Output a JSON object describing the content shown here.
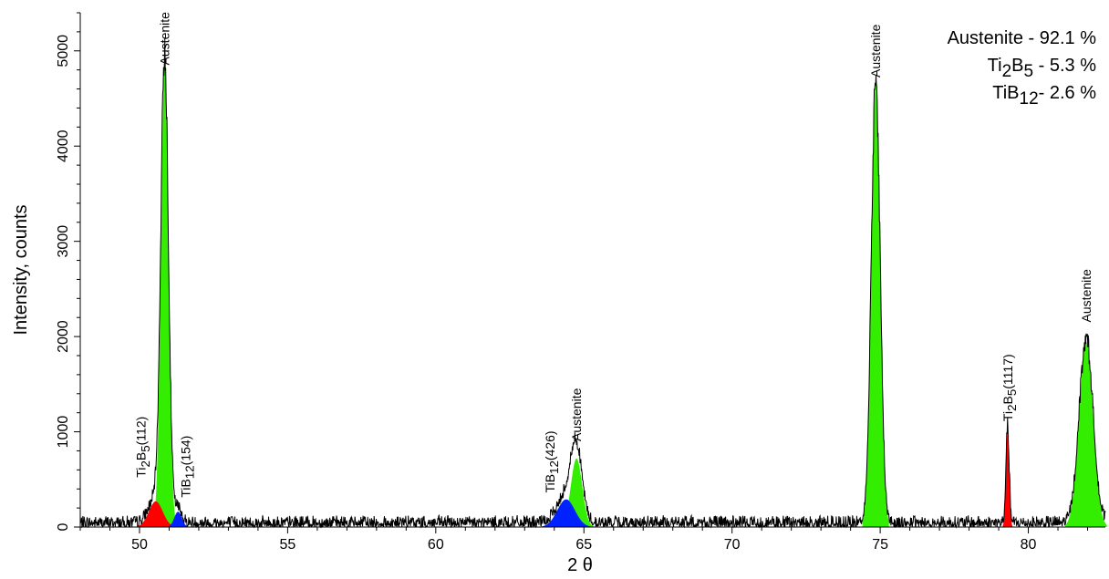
{
  "chart_data": {
    "type": "line",
    "xlabel": "2 θ",
    "ylabel": "Intensity, counts",
    "xlim": [
      48,
      82.6
    ],
    "ylim": [
      0,
      5400
    ],
    "x_ticks": [
      50,
      55,
      60,
      65,
      70,
      75,
      80
    ],
    "y_ticks": [
      0,
      1000,
      2000,
      3000,
      4000,
      5000
    ],
    "grid": false,
    "background_noise_counts": 120,
    "colors": {
      "pattern_line": "#000000",
      "austenite": "#33ee00",
      "ti2b5": "#ff0000",
      "tib12": "#0022ff"
    },
    "phases": [
      {
        "key": "austenite",
        "color": "#33ee00",
        "peaks": [
          {
            "center": 50.85,
            "fwhm": 0.3,
            "height": 4850
          },
          {
            "center": 64.75,
            "fwhm": 0.45,
            "height": 720
          },
          {
            "center": 74.85,
            "fwhm": 0.35,
            "height": 4680
          },
          {
            "center": 81.95,
            "fwhm": 0.55,
            "height": 1950
          }
        ]
      },
      {
        "key": "ti2b5",
        "color": "#ff0000",
        "peaks": [
          {
            "center": 50.55,
            "fwhm": 0.55,
            "height": 270
          },
          {
            "center": 79.3,
            "fwhm": 0.13,
            "height": 1000
          }
        ]
      },
      {
        "key": "tib12",
        "color": "#0022ff",
        "peaks": [
          {
            "center": 51.3,
            "fwhm": 0.3,
            "height": 160
          },
          {
            "center": 64.4,
            "fwhm": 0.7,
            "height": 290
          }
        ]
      }
    ],
    "peak_labels": [
      {
        "x": 50.85,
        "y": 4850,
        "rotated": true,
        "parts": [
          {
            "t": "Austenite"
          }
        ]
      },
      {
        "x": 64.75,
        "y": 900,
        "rotated": true,
        "parts": [
          {
            "t": "Austenite"
          }
        ]
      },
      {
        "x": 74.85,
        "y": 4720,
        "rotated": true,
        "parts": [
          {
            "t": "Austenite"
          }
        ]
      },
      {
        "x": 81.95,
        "y": 2150,
        "rotated": true,
        "parts": [
          {
            "t": "Austenite"
          }
        ]
      },
      {
        "x": 50.05,
        "y": 520,
        "rotated": true,
        "parts": [
          {
            "t": "Ti"
          },
          {
            "t": "2",
            "sub": true
          },
          {
            "t": "B"
          },
          {
            "t": "5",
            "sub": true
          },
          {
            "t": "(112)"
          }
        ]
      },
      {
        "x": 79.3,
        "y": 1110,
        "rotated": true,
        "parts": [
          {
            "t": "Ti"
          },
          {
            "t": "2",
            "sub": true
          },
          {
            "t": "B"
          },
          {
            "t": "5",
            "sub": true
          },
          {
            "t": "(1117)"
          }
        ]
      },
      {
        "x": 51.55,
        "y": 310,
        "rotated": true,
        "parts": [
          {
            "t": "TiB"
          },
          {
            "t": "12",
            "sub": true
          },
          {
            "t": "(154)"
          }
        ]
      },
      {
        "x": 63.85,
        "y": 360,
        "rotated": true,
        "parts": [
          {
            "t": "TiB"
          },
          {
            "t": "12",
            "sub": true
          },
          {
            "t": "(426)"
          }
        ]
      }
    ],
    "legend": {
      "placement": "top-right",
      "entries": [
        {
          "parts": [
            {
              "t": "Austenite - 92.1 %"
            }
          ]
        },
        {
          "parts": [
            {
              "t": "Ti"
            },
            {
              "t": "2",
              "sub": true
            },
            {
              "t": "B"
            },
            {
              "t": "5",
              "sub": true
            },
            {
              "t": " - 5.3 %"
            }
          ]
        },
        {
          "parts": [
            {
              "t": "TiB"
            },
            {
              "t": "12",
              "sub": true
            },
            {
              "t": "- 2.6 %"
            }
          ]
        }
      ]
    }
  }
}
